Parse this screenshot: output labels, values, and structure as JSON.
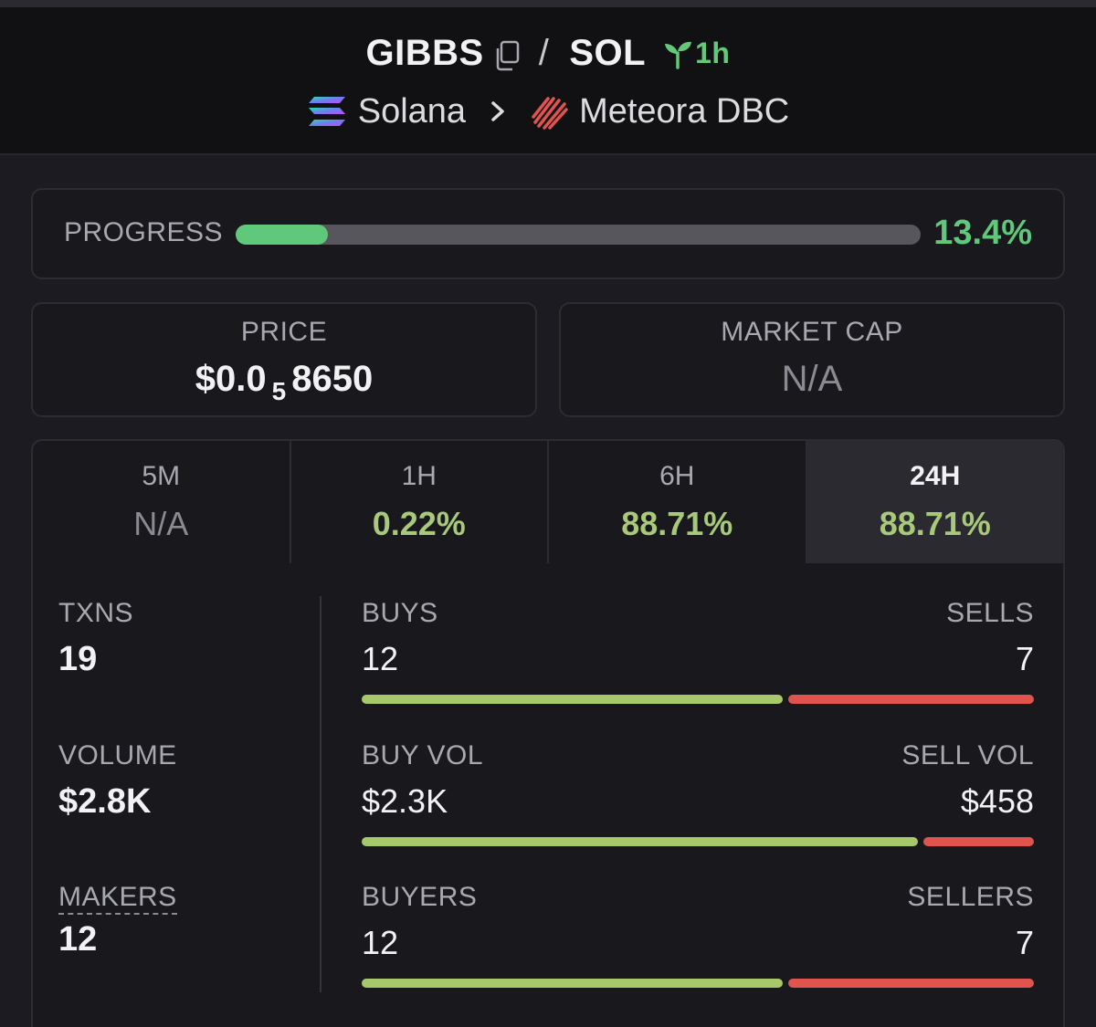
{
  "header": {
    "base_token": "GIBBS",
    "separator": "/",
    "quote_token": "SOL",
    "age": "1h",
    "chain": "Solana",
    "dex": "Meteora DBC",
    "icons": [
      "copy-icon",
      "sprout-icon",
      "solana-logo",
      "chevron-right-icon",
      "meteora-logo"
    ]
  },
  "progress": {
    "label": "PROGRESS",
    "value": "13.4%",
    "fraction": 0.134
  },
  "price": {
    "label": "PRICE",
    "prefix": "$0.0",
    "zeros": "5",
    "digits": "8650"
  },
  "market_cap": {
    "label": "MARKET CAP",
    "value": "N/A"
  },
  "periods": [
    {
      "label": "5M",
      "value": "N/A"
    },
    {
      "label": "1H",
      "value": "0.22%"
    },
    {
      "label": "6H",
      "value": "88.71%"
    },
    {
      "label": "24H",
      "value": "88.71%"
    }
  ],
  "active_period": "24H",
  "metrics": {
    "txns": {
      "label": "TXNS",
      "value": "19"
    },
    "volume": {
      "label": "VOLUME",
      "value": "$2.8K"
    },
    "makers": {
      "label": "MAKERS",
      "value": "12"
    }
  },
  "splits": {
    "txns": {
      "left_label": "BUYS",
      "right_label": "SELLS",
      "left_value": "12",
      "right_value": "7",
      "left_amount": 12,
      "right_amount": 7
    },
    "volume": {
      "left_label": "BUY VOL",
      "right_label": "SELL VOL",
      "left_value": "$2.3K",
      "right_value": "$458",
      "left_amount": 2300,
      "right_amount": 458
    },
    "makers": {
      "left_label": "BUYERS",
      "right_label": "SELLERS",
      "left_value": "12",
      "right_value": "7",
      "left_amount": 12,
      "right_amount": 7
    }
  },
  "colors": {
    "positive": "#5fc87a",
    "buy": "#a8c96a",
    "sell": "#e0534f"
  }
}
